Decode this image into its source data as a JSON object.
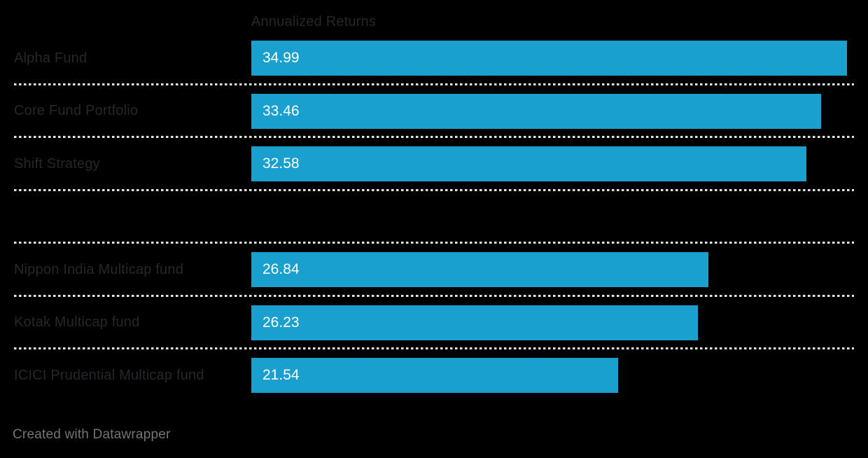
{
  "chart_data": {
    "type": "bar",
    "orientation": "horizontal",
    "column_header": "Annualized Returns",
    "categories": [
      "Alpha Fund",
      "Core Fund Portfolio",
      "Shift Strategy",
      "",
      "Nippon India Multicap fund",
      "Kotak Multicap fund",
      "ICICI Prudential Multicap fund"
    ],
    "values": [
      34.99,
      33.46,
      32.58,
      null,
      26.84,
      26.23,
      21.54
    ],
    "value_labels": [
      "34.99",
      "33.46",
      "32.58",
      "",
      "26.84",
      "26.23",
      "21.54"
    ],
    "xlim": [
      0,
      35
    ],
    "grid": false,
    "legend": "none",
    "title": "",
    "xlabel": "",
    "ylabel": ""
  },
  "footer": {
    "credit": "Created with Datawrapper"
  },
  "colors": {
    "background": "#000000",
    "bar": "#1aa0ce",
    "bar_value_text": "#ffffff",
    "row_label_text": "#26262b",
    "column_header_text": "#26262b",
    "separator_dots": "#e3e3e3",
    "credit_text": "#757575"
  }
}
